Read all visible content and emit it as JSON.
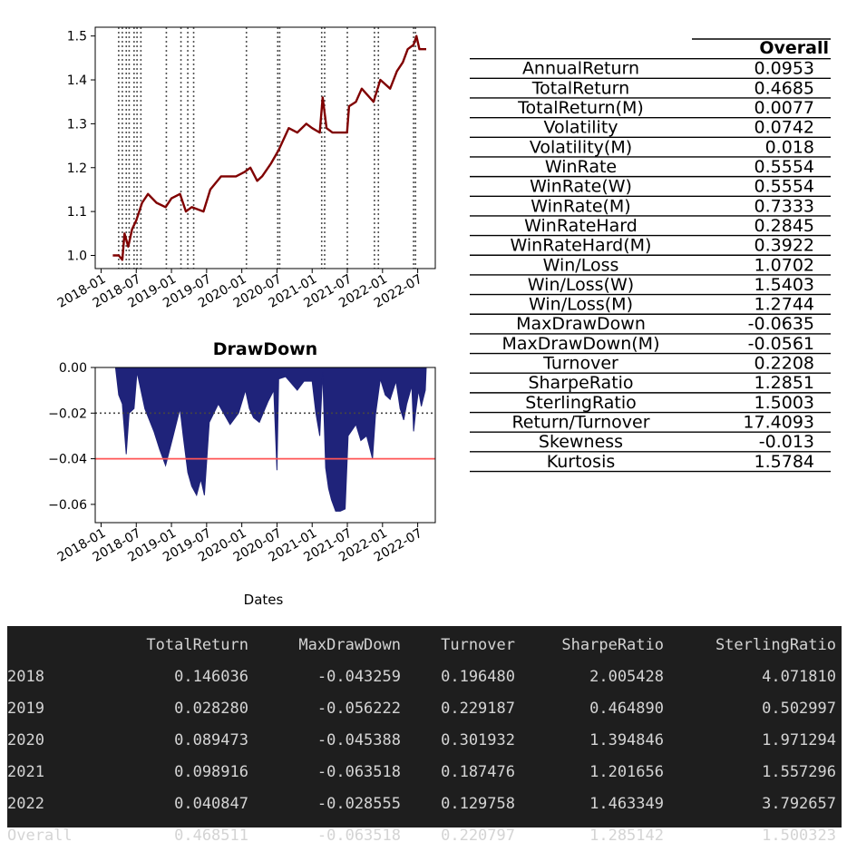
{
  "chart_data": [
    {
      "type": "line",
      "title": "",
      "x_ticks": [
        "2018-01",
        "2018-07",
        "2019-01",
        "2019-07",
        "2020-01",
        "2020-07",
        "2021-01",
        "2021-07",
        "2022-01",
        "2022-07"
      ],
      "y_ticks": [
        "1.0",
        "1.1",
        "1.2",
        "1.3",
        "1.4",
        "1.5"
      ],
      "ylim": [
        0.97,
        1.52
      ],
      "xlim": [
        "2017-12",
        "2022-10"
      ],
      "series": [
        {
          "color": "#800000",
          "points": [
            [
              "2018-03-01",
              1.0
            ],
            [
              "2018-04-01",
              1.0
            ],
            [
              "2018-04-20",
              0.99
            ],
            [
              "2018-05-01",
              1.05
            ],
            [
              "2018-05-20",
              1.02
            ],
            [
              "2018-06-10",
              1.06
            ],
            [
              "2018-07-01",
              1.08
            ],
            [
              "2018-08-01",
              1.12
            ],
            [
              "2018-09-01",
              1.14
            ],
            [
              "2018-10-15",
              1.12
            ],
            [
              "2018-12-01",
              1.11
            ],
            [
              "2019-01-01",
              1.13
            ],
            [
              "2019-02-15",
              1.14
            ],
            [
              "2019-03-15",
              1.1
            ],
            [
              "2019-04-15",
              1.11
            ],
            [
              "2019-06-15",
              1.1
            ],
            [
              "2019-07-20",
              1.15
            ],
            [
              "2019-09-15",
              1.18
            ],
            [
              "2019-12-01",
              1.18
            ],
            [
              "2020-01-15",
              1.19
            ],
            [
              "2020-02-15",
              1.2
            ],
            [
              "2020-03-20",
              1.17
            ],
            [
              "2020-04-15",
              1.18
            ],
            [
              "2020-06-01",
              1.21
            ],
            [
              "2020-07-10",
              1.24
            ],
            [
              "2020-09-01",
              1.29
            ],
            [
              "2020-10-15",
              1.28
            ],
            [
              "2020-12-01",
              1.3
            ],
            [
              "2021-01-01",
              1.29
            ],
            [
              "2021-02-10",
              1.28
            ],
            [
              "2021-02-25",
              1.36
            ],
            [
              "2021-03-15",
              1.29
            ],
            [
              "2021-04-15",
              1.28
            ],
            [
              "2021-06-30",
              1.28
            ],
            [
              "2021-07-10",
              1.34
            ],
            [
              "2021-08-15",
              1.35
            ],
            [
              "2021-09-15",
              1.38
            ],
            [
              "2021-11-15",
              1.35
            ],
            [
              "2021-12-20",
              1.4
            ],
            [
              "2022-02-10",
              1.38
            ],
            [
              "2022-03-15",
              1.42
            ],
            [
              "2022-04-15",
              1.44
            ],
            [
              "2022-05-10",
              1.47
            ],
            [
              "2022-06-10",
              1.48
            ],
            [
              "2022-06-25",
              1.5
            ],
            [
              "2022-07-10",
              1.47
            ],
            [
              "2022-08-15",
              1.47
            ]
          ]
        }
      ],
      "vlines": [
        "2018-04-01",
        "2018-04-20",
        "2018-05-10",
        "2018-05-25",
        "2018-06-20",
        "2018-07-05",
        "2018-07-25",
        "2018-12-05",
        "2019-02-20",
        "2019-03-25",
        "2019-04-25",
        "2020-01-25",
        "2020-07-05",
        "2020-07-15",
        "2021-02-20",
        "2021-03-05",
        "2021-07-01",
        "2021-11-20",
        "2021-12-10",
        "2022-06-10",
        "2022-06-20"
      ],
      "grid": false
    },
    {
      "type": "area",
      "title": "DrawDown",
      "xlabel": "Dates",
      "x_ticks": [
        "2018-01",
        "2018-07",
        "2019-01",
        "2019-07",
        "2020-01",
        "2020-07",
        "2021-01",
        "2021-07",
        "2022-01",
        "2022-07"
      ],
      "y_ticks": [
        "0.00",
        "−0.02",
        "−0.04",
        "−0.06"
      ],
      "ylim": [
        -0.068,
        0.0
      ],
      "xlim": [
        "2017-12",
        "2022-10"
      ],
      "fill_color": "#1f237a",
      "hlines": [
        {
          "value": -0.02,
          "color": "#444444",
          "style": "dotted"
        },
        {
          "value": -0.04,
          "color": "#ff5555",
          "style": "solid"
        }
      ],
      "series": [
        {
          "points": [
            [
              "2018-03-15",
              0.0
            ],
            [
              "2018-04-01",
              -0.012
            ],
            [
              "2018-04-20",
              -0.016
            ],
            [
              "2018-05-10",
              -0.038
            ],
            [
              "2018-05-25",
              -0.02
            ],
            [
              "2018-06-20",
              -0.018
            ],
            [
              "2018-07-05",
              -0.002
            ],
            [
              "2018-08-15",
              -0.018
            ],
            [
              "2018-10-01",
              -0.028
            ],
            [
              "2018-11-01",
              -0.036
            ],
            [
              "2018-12-01",
              -0.043
            ],
            [
              "2019-01-10",
              -0.03
            ],
            [
              "2019-02-15",
              -0.018
            ],
            [
              "2019-03-01",
              -0.03
            ],
            [
              "2019-03-25",
              -0.046
            ],
            [
              "2019-04-15",
              -0.052
            ],
            [
              "2019-05-10",
              -0.056
            ],
            [
              "2019-06-01",
              -0.049
            ],
            [
              "2019-06-20",
              -0.056
            ],
            [
              "2019-07-15",
              -0.024
            ],
            [
              "2019-09-01",
              -0.016
            ],
            [
              "2019-11-01",
              -0.025
            ],
            [
              "2019-12-15",
              -0.02
            ],
            [
              "2020-01-20",
              -0.01
            ],
            [
              "2020-02-10",
              -0.018
            ],
            [
              "2020-03-01",
              -0.022
            ],
            [
              "2020-04-01",
              -0.024
            ],
            [
              "2020-05-15",
              -0.015
            ],
            [
              "2020-06-15",
              -0.01
            ],
            [
              "2020-07-01",
              -0.045
            ],
            [
              "2020-07-10",
              -0.005
            ],
            [
              "2020-08-15",
              -0.004
            ],
            [
              "2020-10-15",
              -0.01
            ],
            [
              "2020-11-20",
              -0.006
            ],
            [
              "2021-01-01",
              -0.006
            ],
            [
              "2021-01-20",
              -0.02
            ],
            [
              "2021-02-10",
              -0.03
            ],
            [
              "2021-02-25",
              -0.002
            ],
            [
              "2021-03-10",
              -0.044
            ],
            [
              "2021-03-25",
              -0.053
            ],
            [
              "2021-04-10",
              -0.058
            ],
            [
              "2021-05-01",
              -0.063
            ],
            [
              "2021-05-25",
              -0.063
            ],
            [
              "2021-06-20",
              -0.062
            ],
            [
              "2021-07-05",
              -0.03
            ],
            [
              "2021-08-15",
              -0.025
            ],
            [
              "2021-09-10",
              -0.032
            ],
            [
              "2021-10-10",
              -0.03
            ],
            [
              "2021-11-10",
              -0.04
            ],
            [
              "2021-11-25",
              -0.021
            ],
            [
              "2021-12-20",
              -0.005
            ],
            [
              "2022-01-15",
              -0.012
            ],
            [
              "2022-02-10",
              -0.014
            ],
            [
              "2022-03-10",
              -0.006
            ],
            [
              "2022-04-01",
              -0.018
            ],
            [
              "2022-04-20",
              -0.023
            ],
            [
              "2022-05-05",
              -0.016
            ],
            [
              "2022-06-01",
              -0.008
            ],
            [
              "2022-06-10",
              -0.028
            ],
            [
              "2022-06-20",
              -0.02
            ],
            [
              "2022-07-05",
              -0.01
            ],
            [
              "2022-07-20",
              -0.017
            ],
            [
              "2022-08-10",
              -0.01
            ],
            [
              "2022-08-15",
              0.0
            ]
          ]
        }
      ],
      "grid": false
    },
    {
      "type": "table",
      "header": [
        "",
        "Overall"
      ],
      "rows": [
        [
          "AnnualReturn",
          "0.0953"
        ],
        [
          "TotalReturn",
          "0.4685"
        ],
        [
          "TotalReturn(M)",
          "0.0077"
        ],
        [
          "Volatility",
          "0.0742"
        ],
        [
          "Volatility(M)",
          "0.018"
        ],
        [
          "WinRate",
          "0.5554"
        ],
        [
          "WinRate(W)",
          "0.5554"
        ],
        [
          "WinRate(M)",
          "0.7333"
        ],
        [
          "WinRateHard",
          "0.2845"
        ],
        [
          "WinRateHard(M)",
          "0.3922"
        ],
        [
          "Win/Loss",
          "1.0702"
        ],
        [
          "Win/Loss(W)",
          "1.5403"
        ],
        [
          "Win/Loss(M)",
          "1.2744"
        ],
        [
          "MaxDrawDown",
          "-0.0635"
        ],
        [
          "MaxDrawDown(M)",
          "-0.0561"
        ],
        [
          "Turnover",
          "0.2208"
        ],
        [
          "SharpeRatio",
          "1.2851"
        ],
        [
          "SterlingRatio",
          "1.5003"
        ],
        [
          "Return/Turnover",
          "17.4093"
        ],
        [
          "Skewness",
          "-0.013"
        ],
        [
          "Kurtosis",
          "1.5784"
        ]
      ]
    },
    {
      "type": "table",
      "columns": [
        "",
        "TotalReturn",
        "MaxDrawDown",
        "Turnover",
        "SharpeRatio",
        "SterlingRatio"
      ],
      "rows": [
        [
          "2018",
          "0.146036",
          "-0.043259",
          "0.196480",
          "2.005428",
          "4.071810"
        ],
        [
          "2019",
          "0.028280",
          "-0.056222",
          "0.229187",
          "0.464890",
          "0.502997"
        ],
        [
          "2020",
          "0.089473",
          "-0.045388",
          "0.301932",
          "1.394846",
          "1.971294"
        ],
        [
          "2021",
          "0.098916",
          "-0.063518",
          "0.187476",
          "1.201656",
          "1.557296"
        ],
        [
          "2022",
          "0.040847",
          "-0.028555",
          "0.129758",
          "1.463349",
          "3.792657"
        ],
        [
          "Overall",
          "0.468511",
          "-0.063518",
          "0.220797",
          "1.285142",
          "1.500323"
        ]
      ]
    }
  ]
}
